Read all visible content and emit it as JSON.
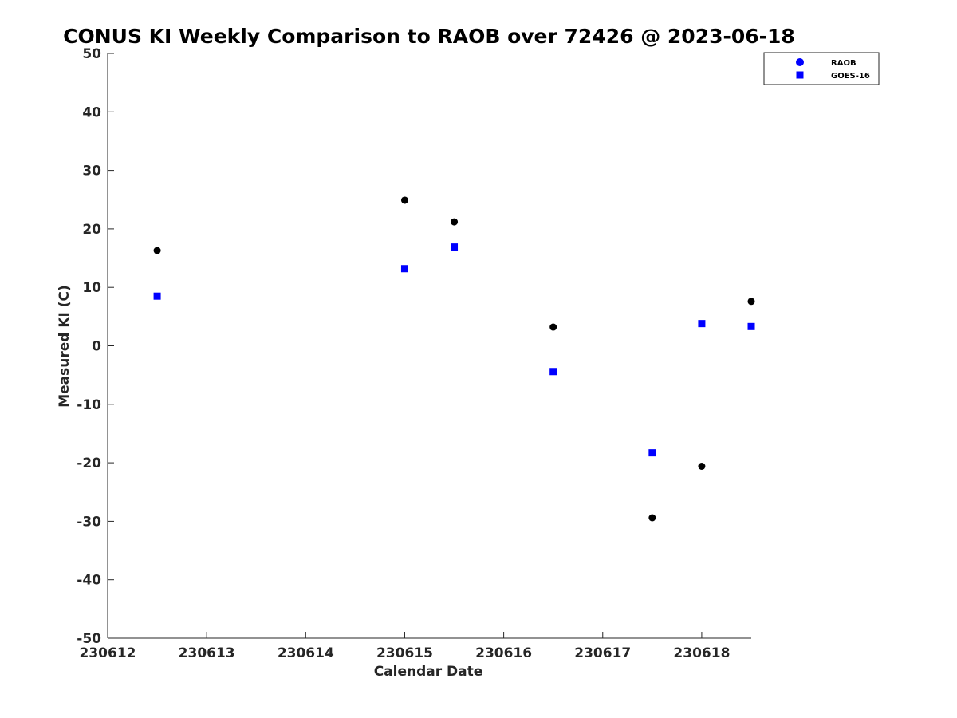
{
  "chart_data": {
    "type": "scatter",
    "title": "CONUS KI Weekly Comparison to RAOB over 72426 @ 2023-06-18",
    "xlabel": "Calendar Date",
    "ylabel": "Measured KI (C)",
    "xlim": [
      230612,
      230618.5
    ],
    "ylim": [
      -50,
      50
    ],
    "x_ticks": [
      230612,
      230613,
      230614,
      230615,
      230616,
      230617,
      230618
    ],
    "y_ticks": [
      -50,
      -40,
      -30,
      -20,
      -10,
      0,
      10,
      20,
      30,
      40,
      50
    ],
    "grid": false,
    "legend_position": "top-right",
    "series": [
      {
        "name": "RAOB",
        "marker": "circle",
        "color": "#000000",
        "legend_color": "#0000ff",
        "x": [
          230612.5,
          230615.0,
          230615.5,
          230616.5,
          230617.5,
          230618.0,
          230618.5
        ],
        "y": [
          16.3,
          24.9,
          21.2,
          3.2,
          -29.4,
          -20.6,
          7.6
        ]
      },
      {
        "name": "GOES-16",
        "marker": "square",
        "color": "#0000ff",
        "legend_color": "#0000ff",
        "x": [
          230612.5,
          230615.0,
          230615.5,
          230616.5,
          230617.5,
          230618.0,
          230618.5
        ],
        "y": [
          8.5,
          13.2,
          16.9,
          -4.4,
          -18.3,
          3.8,
          3.3
        ]
      }
    ]
  }
}
